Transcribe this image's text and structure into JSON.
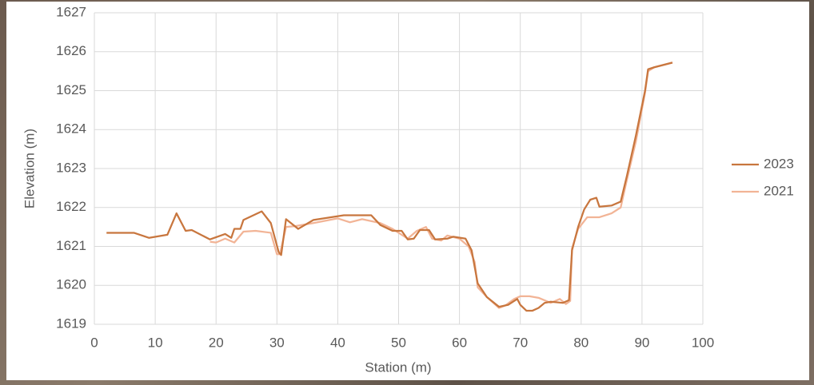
{
  "chart_data": {
    "type": "line",
    "x_label": "Station (m)",
    "y_label": "Elevation (m)",
    "xlim": [
      0,
      100
    ],
    "xticks": [
      0,
      10,
      20,
      30,
      40,
      50,
      60,
      70,
      80,
      90,
      100
    ],
    "ylim": [
      1619,
      1627
    ],
    "yticks": [
      1619,
      1620,
      1621,
      1622,
      1623,
      1624,
      1625,
      1626,
      1627
    ],
    "grid": true,
    "legend": "right",
    "series": [
      {
        "name": "2023",
        "color": "#c8763e",
        "x": [
          2,
          6.5,
          9,
          12,
          13.5,
          15,
          16,
          19,
          21.5,
          22.5,
          23,
          24,
          24.5,
          27.5,
          29,
          30.3,
          30.7,
          31.5,
          33.5,
          36,
          41,
          45.5,
          47,
          49,
          50.5,
          51.5,
          52.5,
          53.5,
          55,
          56,
          58,
          59,
          61,
          62,
          63,
          64.5,
          66.5,
          68,
          69.5,
          70,
          71,
          72,
          73,
          74,
          75,
          77,
          78,
          78.5,
          79.5,
          80.5,
          81.5,
          82.5,
          83,
          85,
          86.5,
          87.5,
          89,
          90.5,
          91,
          92,
          95
        ],
        "values": [
          1621.35,
          1621.35,
          1621.22,
          1621.3,
          1621.85,
          1621.4,
          1621.42,
          1621.18,
          1621.32,
          1621.22,
          1621.45,
          1621.45,
          1621.68,
          1621.9,
          1621.6,
          1620.85,
          1620.78,
          1621.7,
          1621.45,
          1621.68,
          1621.8,
          1621.8,
          1621.55,
          1621.4,
          1621.4,
          1621.18,
          1621.2,
          1621.42,
          1621.42,
          1621.18,
          1621.2,
          1621.25,
          1621.2,
          1620.9,
          1620.05,
          1619.7,
          1619.45,
          1619.5,
          1619.65,
          1619.5,
          1619.35,
          1619.35,
          1619.42,
          1619.55,
          1619.58,
          1619.55,
          1619.62,
          1620.9,
          1621.5,
          1621.95,
          1622.2,
          1622.25,
          1622.02,
          1622.05,
          1622.15,
          1622.8,
          1623.85,
          1625.0,
          1625.55,
          1625.6,
          1625.72
        ]
      },
      {
        "name": "2021",
        "color": "#f2b496",
        "x": [
          19,
          20,
          21.5,
          23,
          24.5,
          26.5,
          29,
          30,
          30.5,
          31.5,
          33,
          36,
          40,
          42,
          44,
          47,
          49,
          51.5,
          53,
          54.5,
          55.5,
          57,
          58,
          60,
          61.5,
          62.5,
          63,
          64.5,
          66.5,
          67.5,
          69,
          70,
          71.5,
          73,
          75,
          76.5,
          77.5,
          78.2,
          78.5,
          79.5,
          81,
          83,
          85,
          86.5,
          87.5,
          89,
          90.5,
          91,
          92,
          95
        ],
        "values": [
          1621.12,
          1621.1,
          1621.2,
          1621.1,
          1621.38,
          1621.4,
          1621.35,
          1620.8,
          1620.8,
          1621.5,
          1621.52,
          1621.6,
          1621.72,
          1621.62,
          1621.7,
          1621.6,
          1621.45,
          1621.2,
          1621.4,
          1621.5,
          1621.2,
          1621.15,
          1621.28,
          1621.2,
          1621.0,
          1620.6,
          1619.95,
          1619.7,
          1619.42,
          1619.48,
          1619.65,
          1619.72,
          1619.72,
          1619.68,
          1619.55,
          1619.65,
          1619.52,
          1619.6,
          1620.95,
          1621.45,
          1621.75,
          1621.75,
          1621.85,
          1622.0,
          1622.7,
          1623.7,
          1624.95,
          1625.5,
          1625.6,
          1625.72
        ]
      }
    ]
  }
}
